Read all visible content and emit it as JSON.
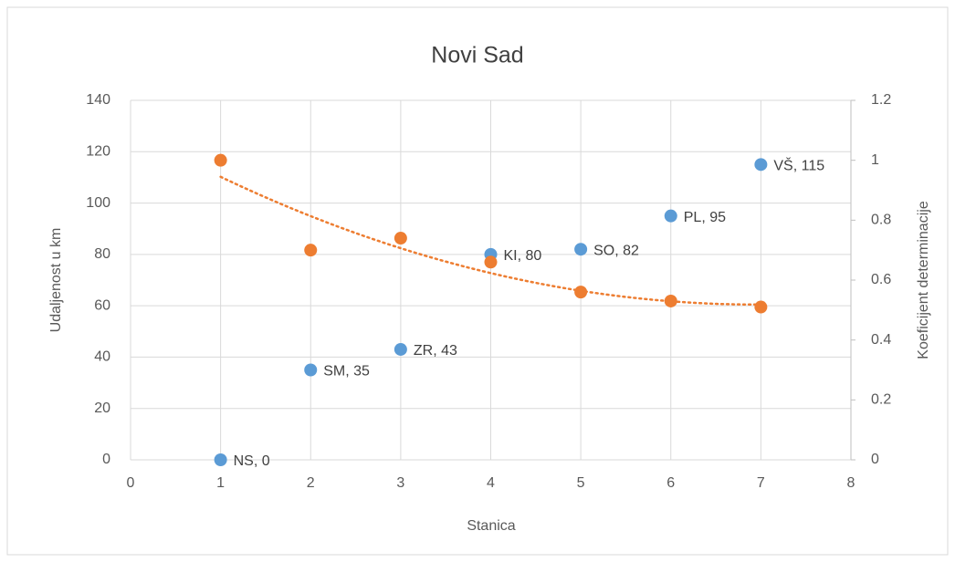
{
  "chart_data": {
    "type": "scatter",
    "title": "Novi Sad",
    "x_label": "Stanica",
    "y_label": "Udaljenost u km",
    "y2_label": "Koeficijent determinacije",
    "xlim": [
      0,
      8
    ],
    "xticks": [
      0,
      1,
      2,
      3,
      4,
      5,
      6,
      7,
      8
    ],
    "ylim": [
      0,
      140
    ],
    "yticks": [
      0,
      20,
      40,
      60,
      80,
      100,
      120,
      140
    ],
    "y2lim": [
      0,
      1.2
    ],
    "y2ticks": [
      0,
      0.2,
      0.4,
      0.6,
      0.8,
      1,
      1.2
    ],
    "grid": true,
    "series": [
      {
        "color": "#5b9bd5",
        "x": [
          1,
          2,
          3,
          4,
          5,
          6,
          7
        ],
        "values": [
          0,
          35,
          43,
          80,
          82,
          95,
          115
        ],
        "value_labels": [
          "NS, 0",
          "SM, 35",
          "ZR, 43",
          "KI, 80",
          "SO, 82",
          "PL, 95",
          "VŠ, 115"
        ]
      },
      {
        "color": "#ed7d31",
        "axis": "y2",
        "trendline": "polynomial",
        "x": [
          1,
          2,
          3,
          4,
          5,
          6,
          7
        ],
        "values": [
          1.0,
          0.7,
          0.74,
          0.66,
          0.56,
          0.53,
          0.51
        ]
      }
    ]
  }
}
